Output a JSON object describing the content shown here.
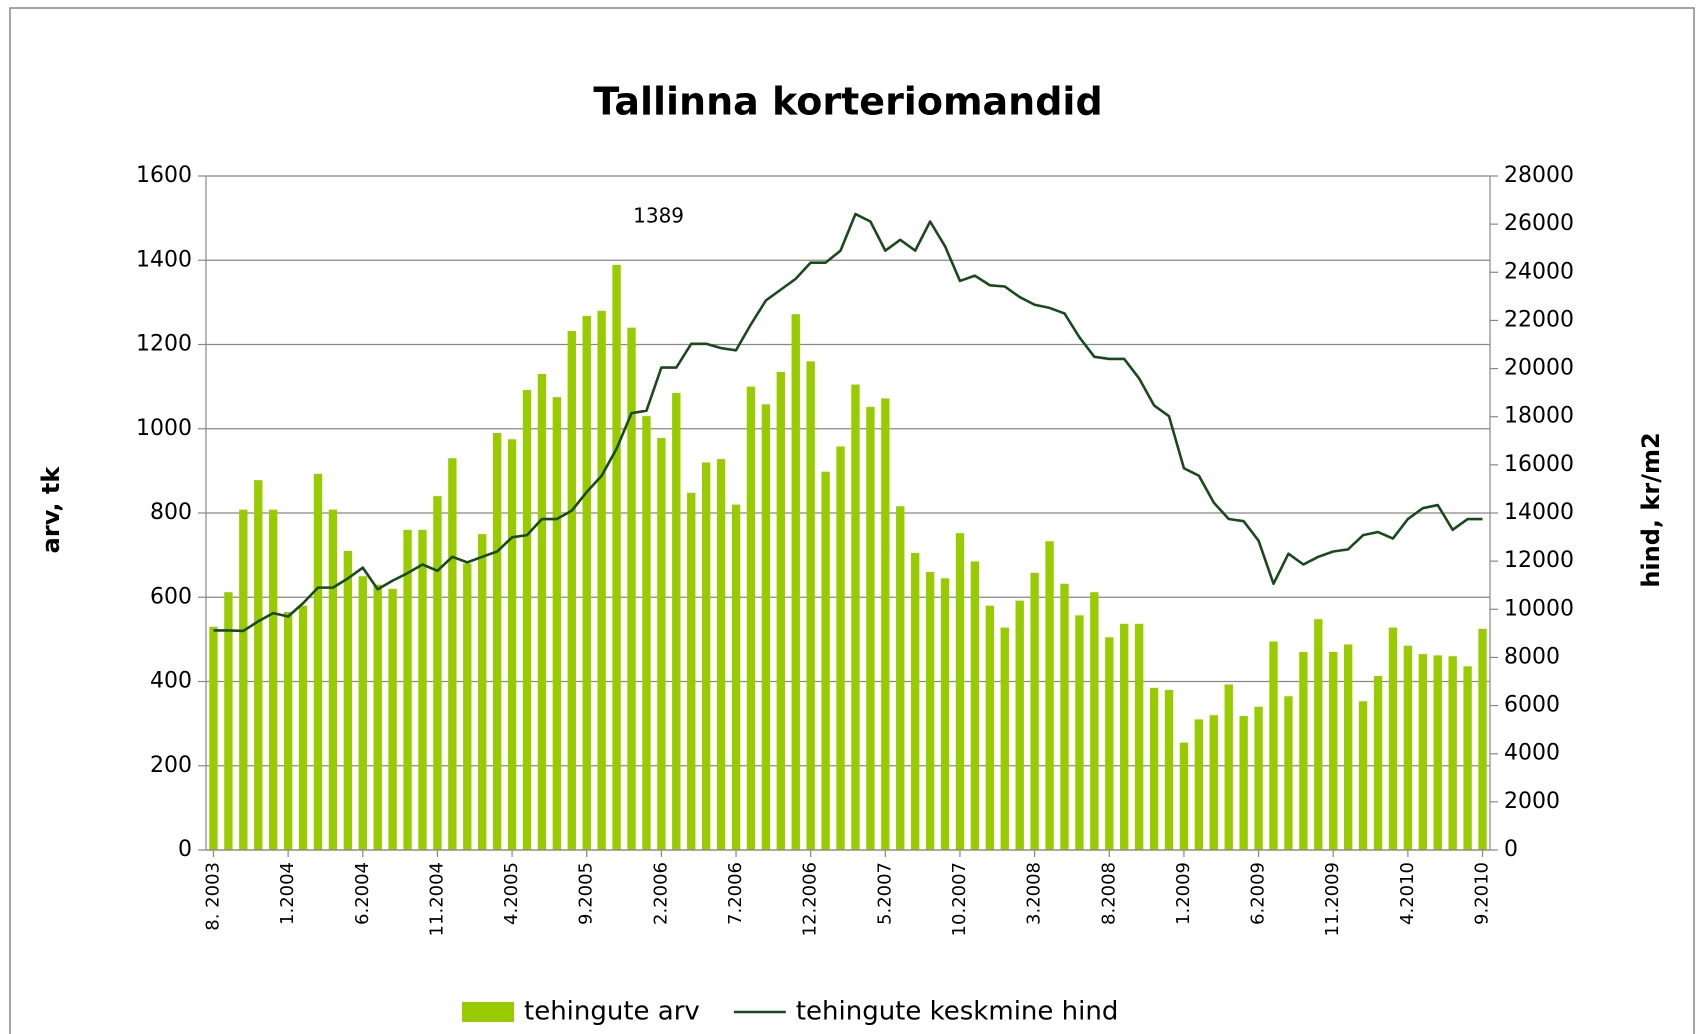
{
  "chart_data": {
    "type": "bar-line",
    "title": "Tallinna korteriomandid",
    "y_label": "arv, tk",
    "y2_label": "hind, kr/m2",
    "categories": [
      "8. 2003",
      null,
      null,
      null,
      null,
      "1.2004",
      null,
      null,
      null,
      null,
      "6.2004",
      null,
      null,
      null,
      null,
      "11.2004",
      null,
      null,
      null,
      null,
      "4.2005",
      null,
      null,
      null,
      null,
      "9.2005",
      null,
      null,
      null,
      null,
      "2.2006",
      null,
      null,
      null,
      null,
      "7.2006",
      null,
      null,
      null,
      null,
      "12.2006",
      null,
      null,
      null,
      null,
      "5.2007",
      null,
      null,
      null,
      null,
      "10.2007",
      null,
      null,
      null,
      null,
      "3.2008",
      null,
      null,
      null,
      null,
      "8.2008",
      null,
      null,
      null,
      null,
      "1.2009",
      null,
      null,
      null,
      null,
      "6.2009",
      null,
      null,
      null,
      null,
      "11.2009",
      null,
      null,
      null,
      null,
      "4.2010",
      null,
      null,
      null,
      null,
      "9.2010"
    ],
    "series": [
      {
        "name": "tehingute arv",
        "type": "bar",
        "color": "#99cc00",
        "axis": "y",
        "values": [
          530,
          612,
          808,
          878,
          808,
          565,
          580,
          893,
          808,
          710,
          650,
          630,
          620,
          760,
          760,
          840,
          930,
          680,
          750,
          990,
          975,
          1092,
          1130,
          1075,
          1232,
          1268,
          1280,
          1389,
          1240,
          1030,
          978,
          1085,
          848,
          920,
          928,
          820,
          1100,
          1058,
          1135,
          1272,
          1160,
          898,
          958,
          1105,
          1052,
          1072,
          816,
          705,
          660,
          645,
          752,
          685,
          580,
          528,
          592,
          658,
          733,
          632,
          557,
          612,
          505,
          537,
          537,
          385,
          380,
          255,
          310,
          320,
          393,
          318,
          340,
          495,
          365,
          470,
          548,
          470,
          488,
          353,
          413,
          528,
          485,
          465,
          462,
          460,
          436,
          525
        ]
      },
      {
        "name": "tehingute keskmine hind",
        "type": "line",
        "color": "#1a4a1a",
        "axis": "y2",
        "values": [
          9120,
          9120,
          9100,
          9500,
          9840,
          9700,
          10250,
          10900,
          10900,
          11280,
          11730,
          10830,
          11190,
          11500,
          11860,
          11600,
          12180,
          11950,
          12180,
          12400,
          12990,
          13080,
          13750,
          13750,
          14100,
          14870,
          15550,
          16670,
          18150,
          18250,
          20040,
          20040,
          21030,
          21030,
          20850,
          20760,
          21840,
          22830,
          23280,
          23730,
          24400,
          24400,
          24900,
          26420,
          26110,
          24900,
          25350,
          24900,
          26110,
          25080,
          23640,
          23860,
          23460,
          23410,
          22970,
          22650,
          22520,
          22290,
          21300,
          20490,
          20400,
          20400,
          19590,
          18470,
          18020,
          15860,
          15550,
          14430,
          13750,
          13660,
          12850,
          11060,
          12310,
          11860,
          12180,
          12400,
          12490,
          13080,
          13210,
          12940,
          13750,
          14200,
          14330,
          13300,
          13750,
          13750
        ]
      }
    ],
    "value_label_indices": [
      27
    ],
    "ylim": [
      0,
      1600
    ],
    "yticks": [
      0,
      200,
      400,
      600,
      800,
      1000,
      1200,
      1400,
      1600
    ],
    "y2lim": [
      0,
      28000
    ],
    "y2ticks": [
      0,
      2000,
      4000,
      6000,
      8000,
      10000,
      12000,
      14000,
      16000,
      18000,
      20000,
      22000,
      24000,
      26000,
      28000
    ],
    "grid": true,
    "legend": "bottom"
  }
}
